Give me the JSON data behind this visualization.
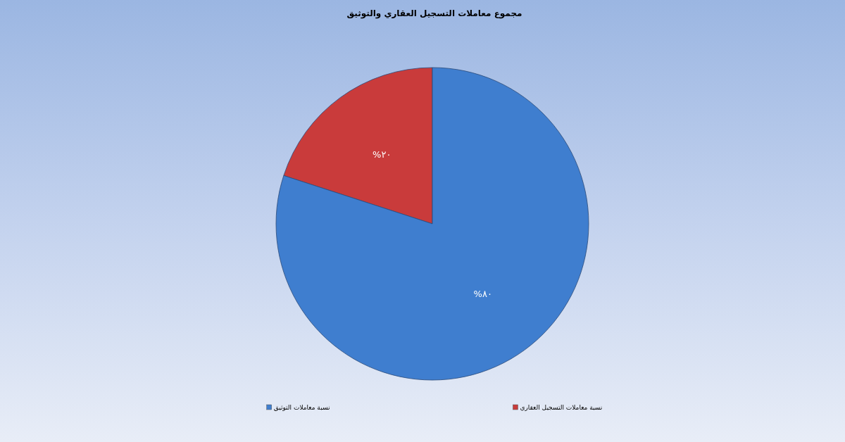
{
  "chart_data": {
    "type": "pie",
    "title": "مجموع معاملات التسجيل العقاري والتوثيق",
    "categories": [
      "نسبة معاملات التسجيل العقاري",
      "نسبة معاملات التوثيق"
    ],
    "values": [
      20,
      80
    ],
    "colors": [
      "#c93b3b",
      "#3f7ecf"
    ],
    "value_labels": [
      "٢٠%",
      "٨٠%"
    ],
    "legend": "bottom"
  }
}
